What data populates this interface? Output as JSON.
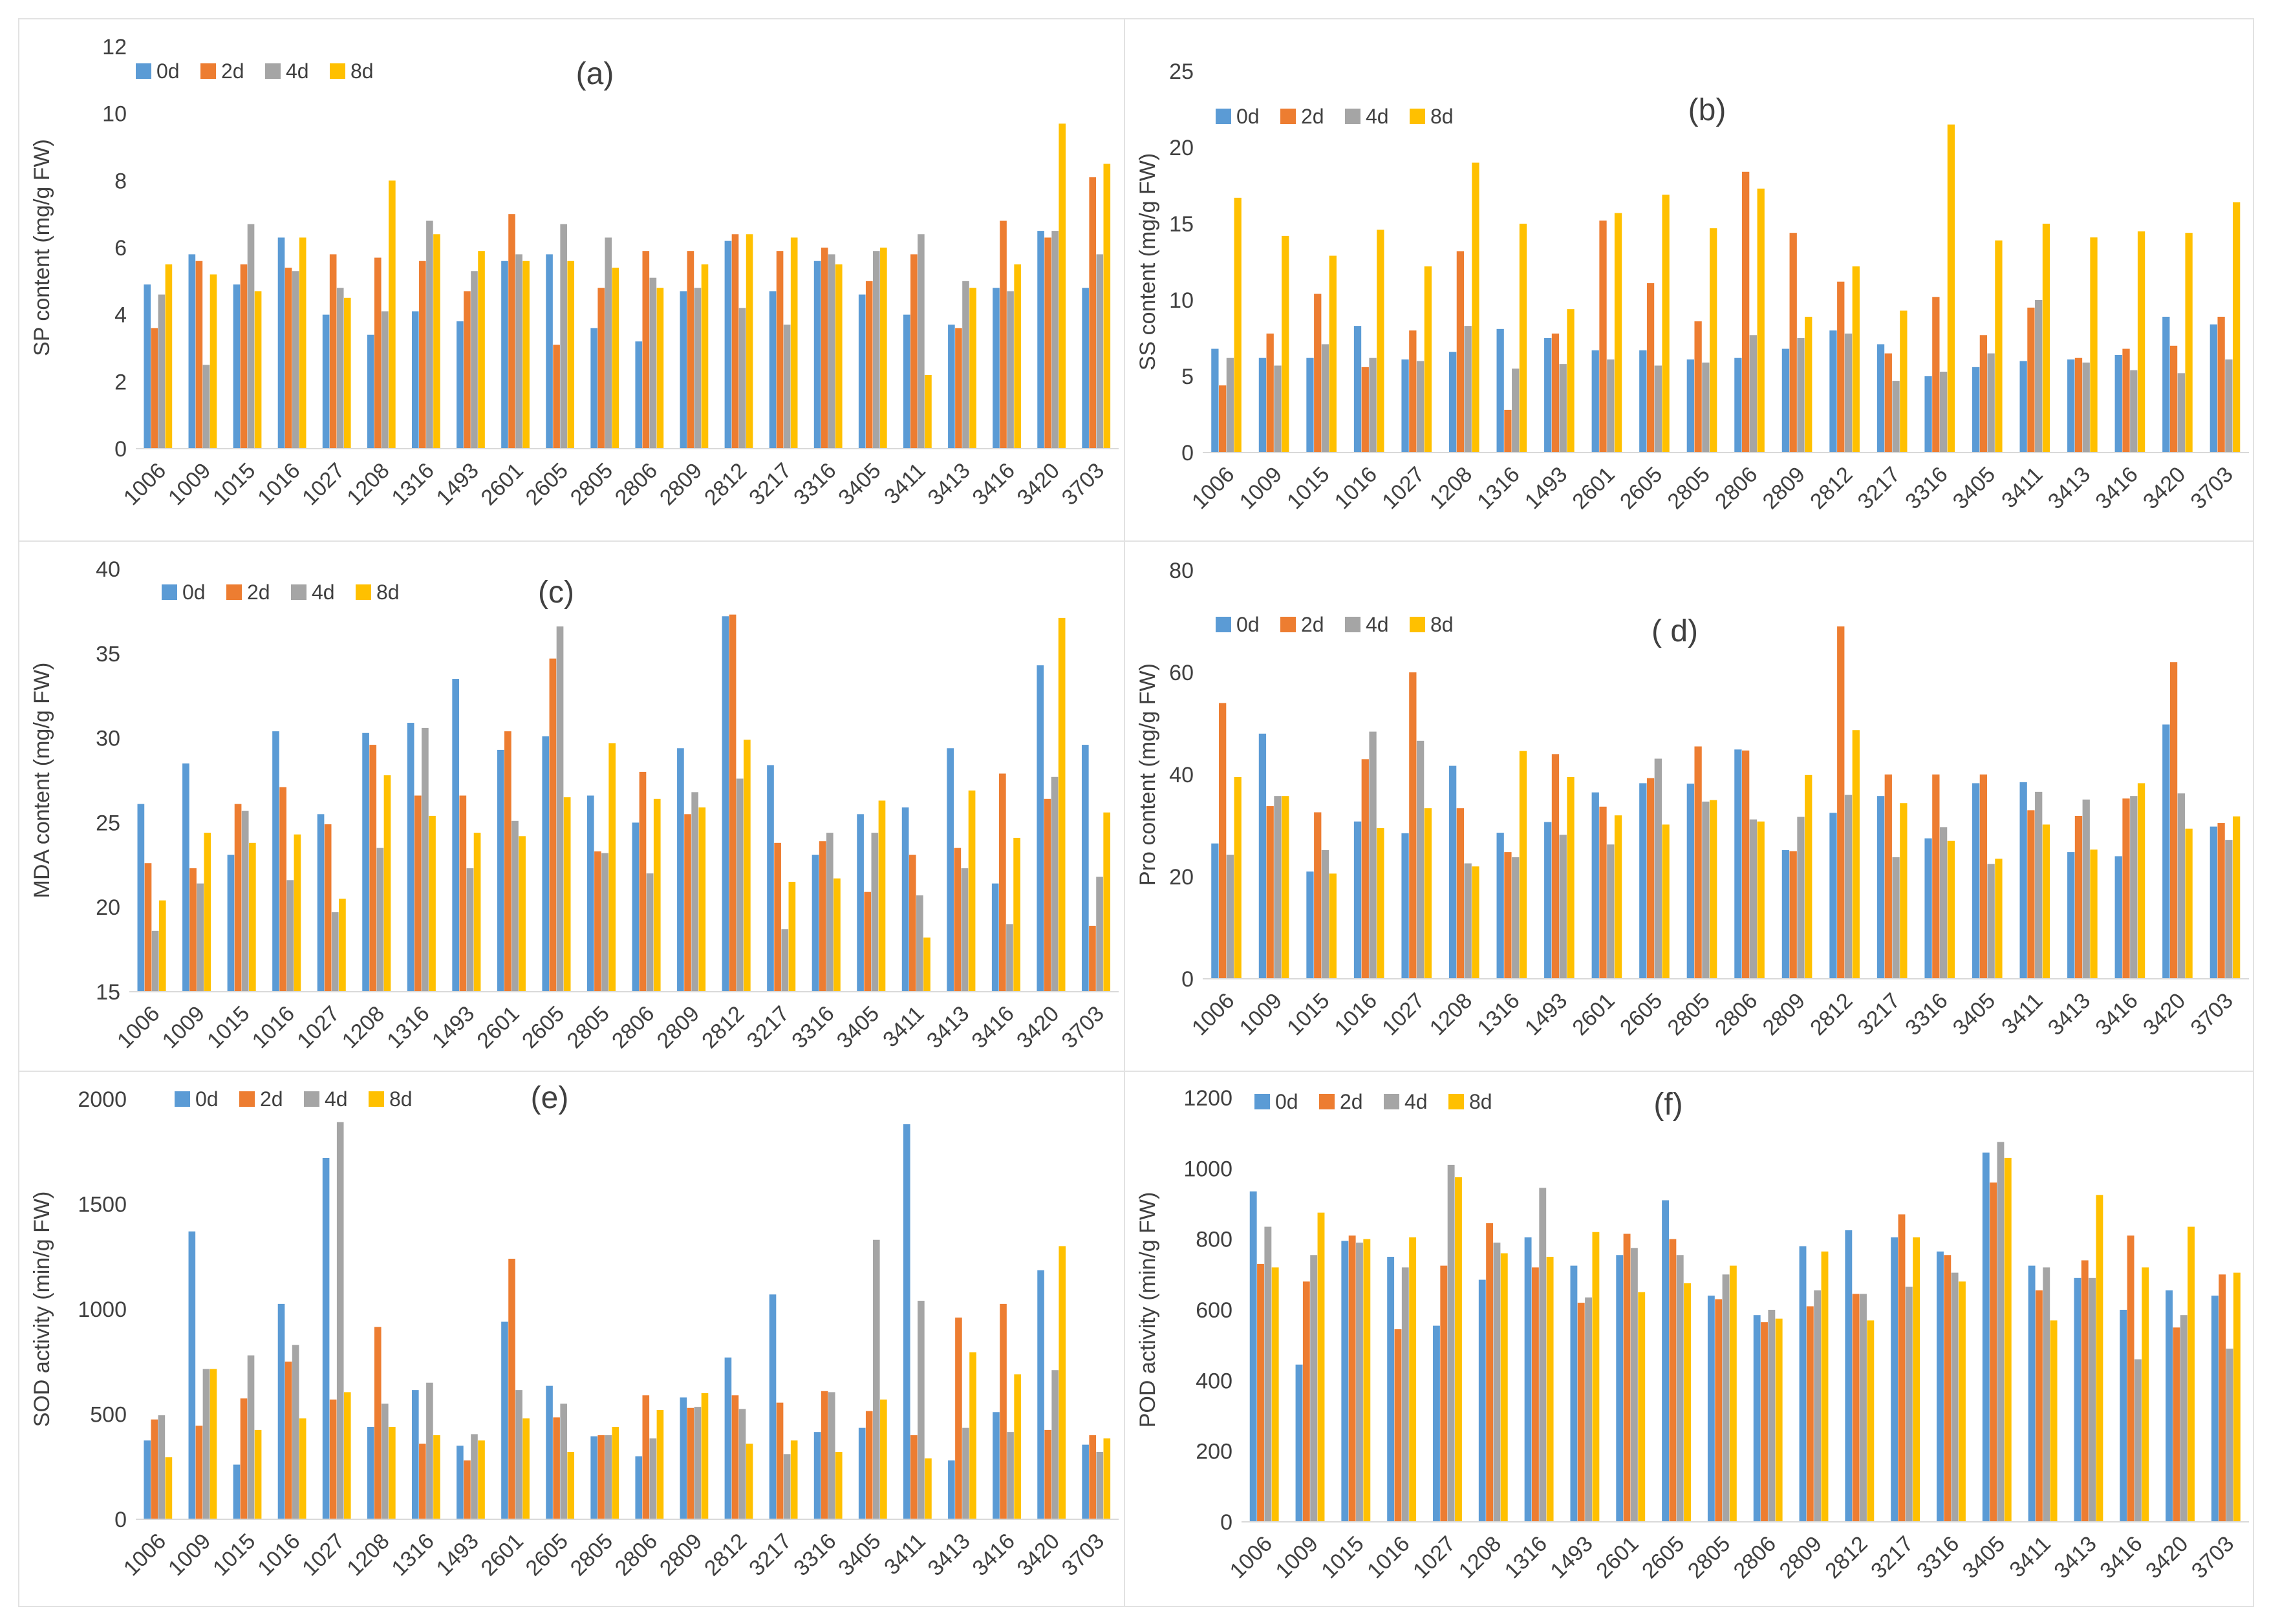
{
  "chart_data": [
    {
      "type": "bar",
      "panel_label": "(a)",
      "ylabel": "SP content (mg/g FW)",
      "ylim": [
        0,
        12
      ],
      "yticks": [
        "0",
        "2",
        "4",
        "6",
        "8",
        "10",
        "12"
      ],
      "legend_position": "top-left",
      "categories": [
        "1006",
        "1009",
        "1015",
        "1016",
        "1027",
        "1208",
        "1316",
        "1493",
        "2601",
        "2605",
        "2805",
        "2806",
        "2809",
        "2812",
        "3217",
        "3316",
        "3405",
        "3411",
        "3413",
        "3416",
        "3420",
        "3703"
      ],
      "series": [
        {
          "name": "0d",
          "color": "#5b9bd5",
          "values": [
            4.9,
            5.8,
            4.9,
            6.3,
            4.0,
            3.4,
            4.1,
            3.8,
            5.6,
            5.8,
            3.6,
            3.2,
            4.7,
            6.2,
            4.7,
            5.6,
            4.6,
            4.0,
            3.7,
            4.8,
            6.5,
            4.8
          ]
        },
        {
          "name": "2d",
          "color": "#ed7d31",
          "values": [
            3.6,
            5.6,
            5.5,
            5.4,
            5.8,
            5.7,
            5.6,
            4.7,
            7.0,
            3.1,
            4.8,
            5.9,
            5.9,
            6.4,
            5.9,
            6.0,
            5.0,
            5.8,
            3.6,
            6.8,
            6.3,
            8.1
          ]
        },
        {
          "name": "4d",
          "color": "#a5a5a5",
          "values": [
            4.6,
            2.5,
            6.7,
            5.3,
            4.8,
            4.1,
            6.8,
            5.3,
            5.8,
            6.7,
            6.3,
            5.1,
            4.8,
            4.2,
            3.7,
            5.8,
            5.9,
            6.4,
            5.0,
            4.7,
            6.5,
            5.8
          ]
        },
        {
          "name": "8d",
          "color": "#ffc000",
          "values": [
            5.5,
            5.2,
            4.7,
            6.3,
            4.5,
            8.0,
            6.4,
            5.9,
            5.6,
            5.6,
            5.4,
            4.8,
            5.5,
            6.4,
            6.3,
            5.5,
            6.0,
            2.2,
            4.8,
            5.5,
            9.7,
            8.5
          ]
        }
      ]
    },
    {
      "type": "bar",
      "panel_label": "(b)",
      "ylabel": "SS content (mg/g FW)",
      "ylim": [
        0,
        25
      ],
      "yticks": [
        "0",
        "5",
        "10",
        "15",
        "20",
        "25"
      ],
      "legend_position": "top-left",
      "categories": [
        "1006",
        "1009",
        "1015",
        "1016",
        "1027",
        "1208",
        "1316",
        "1493",
        "2601",
        "2605",
        "2805",
        "2806",
        "2809",
        "2812",
        "3217",
        "3316",
        "3405",
        "3411",
        "3413",
        "3416",
        "3420",
        "3703"
      ],
      "series": [
        {
          "name": "0d",
          "color": "#5b9bd5",
          "values": [
            6.8,
            6.2,
            6.2,
            8.3,
            6.1,
            6.6,
            8.1,
            7.5,
            6.7,
            6.7,
            6.1,
            6.2,
            6.8,
            8.0,
            7.1,
            5.0,
            5.6,
            6.0,
            6.1,
            6.4,
            8.9,
            8.4
          ]
        },
        {
          "name": "2d",
          "color": "#ed7d31",
          "values": [
            4.4,
            7.8,
            10.4,
            5.6,
            8.0,
            13.2,
            2.8,
            7.8,
            15.2,
            11.1,
            8.6,
            18.4,
            14.4,
            11.2,
            6.5,
            10.2,
            7.7,
            9.5,
            6.2,
            6.8,
            7.0,
            8.9
          ]
        },
        {
          "name": "4d",
          "color": "#a5a5a5",
          "values": [
            6.2,
            5.7,
            7.1,
            6.2,
            6.0,
            8.3,
            5.5,
            5.8,
            6.1,
            5.7,
            5.9,
            7.7,
            7.5,
            7.8,
            4.7,
            5.3,
            6.5,
            10.0,
            5.9,
            5.4,
            5.2,
            6.1
          ]
        },
        {
          "name": "8d",
          "color": "#ffc000",
          "values": [
            16.7,
            14.2,
            12.9,
            14.6,
            12.2,
            19.0,
            15.0,
            9.4,
            15.7,
            16.9,
            14.7,
            17.3,
            8.9,
            12.2,
            9.3,
            21.5,
            13.9,
            15.0,
            14.1,
            14.5,
            14.4,
            16.4
          ]
        }
      ]
    },
    {
      "type": "bar",
      "panel_label": "(c)",
      "ylabel": "MDA content (mg/g FW)",
      "ylim": [
        15,
        40
      ],
      "yticks": [
        "15",
        "20",
        "25",
        "30",
        "35",
        "40"
      ],
      "legend_position": "top-left",
      "categories": [
        "1006",
        "1009",
        "1015",
        "1016",
        "1027",
        "1208",
        "1316",
        "1493",
        "2601",
        "2605",
        "2805",
        "2806",
        "2809",
        "2812",
        "3217",
        "3316",
        "3405",
        "3411",
        "3413",
        "3416",
        "3420",
        "3703"
      ],
      "series": [
        {
          "name": "0d",
          "color": "#5b9bd5",
          "values": [
            26.1,
            28.5,
            23.1,
            30.4,
            25.5,
            30.3,
            30.9,
            33.5,
            29.3,
            30.1,
            26.6,
            25.0,
            29.4,
            37.2,
            28.4,
            23.1,
            25.5,
            25.9,
            29.4,
            21.4,
            34.3,
            29.6
          ]
        },
        {
          "name": "2d",
          "color": "#ed7d31",
          "values": [
            22.6,
            22.3,
            26.1,
            27.1,
            24.9,
            29.6,
            26.6,
            26.6,
            30.4,
            34.7,
            23.3,
            28.0,
            25.5,
            37.3,
            23.8,
            23.9,
            20.9,
            23.1,
            23.5,
            27.9,
            26.4,
            18.9
          ]
        },
        {
          "name": "4d",
          "color": "#a5a5a5",
          "values": [
            18.6,
            21.4,
            25.7,
            21.6,
            19.7,
            23.5,
            30.6,
            22.3,
            25.1,
            36.6,
            23.2,
            22.0,
            26.8,
            27.6,
            18.7,
            24.4,
            24.4,
            20.7,
            22.3,
            19.0,
            27.7,
            21.8
          ]
        },
        {
          "name": "8d",
          "color": "#ffc000",
          "values": [
            20.4,
            24.4,
            23.8,
            24.3,
            20.5,
            27.8,
            25.4,
            24.4,
            24.2,
            26.5,
            29.7,
            26.4,
            25.9,
            29.9,
            21.5,
            21.7,
            26.3,
            18.2,
            26.9,
            24.1,
            37.1,
            25.6
          ]
        }
      ]
    },
    {
      "type": "bar",
      "panel_label": "( d)",
      "ylabel": "Pro content  (mg/g FW)",
      "ylim": [
        0,
        80
      ],
      "yticks": [
        "0",
        "20",
        "40",
        "60",
        "80"
      ],
      "legend_position": "top-left",
      "categories": [
        "1006",
        "1009",
        "1015",
        "1016",
        "1027",
        "1208",
        "1316",
        "1493",
        "2601",
        "2605",
        "2805",
        "2806",
        "2809",
        "2812",
        "3217",
        "3316",
        "3405",
        "3411",
        "3413",
        "3416",
        "3420",
        "3703"
      ],
      "series": [
        {
          "name": "0d",
          "color": "#5b9bd5",
          "values": [
            26.5,
            48.0,
            21.0,
            30.8,
            28.5,
            41.7,
            28.6,
            30.7,
            36.5,
            38.3,
            38.2,
            44.9,
            25.2,
            32.5,
            35.8,
            27.5,
            38.3,
            38.5,
            24.8,
            24.0,
            49.8,
            29.8
          ]
        },
        {
          "name": "2d",
          "color": "#ed7d31",
          "values": [
            54.0,
            33.8,
            32.6,
            43.0,
            60.0,
            33.4,
            24.8,
            44.0,
            33.7,
            39.3,
            45.5,
            44.7,
            25.0,
            69.0,
            40.0,
            40.0,
            40.0,
            33.0,
            31.9,
            35.3,
            62.0,
            30.5
          ]
        },
        {
          "name": "4d",
          "color": "#a5a5a5",
          "values": [
            24.3,
            35.8,
            25.2,
            48.4,
            46.6,
            22.6,
            23.8,
            28.2,
            26.3,
            43.1,
            34.7,
            31.2,
            31.7,
            36.0,
            23.8,
            29.7,
            22.5,
            36.6,
            35.1,
            35.8,
            36.3,
            27.2
          ]
        },
        {
          "name": "8d",
          "color": "#ffc000",
          "values": [
            39.5,
            35.8,
            20.6,
            29.5,
            33.4,
            22.0,
            44.6,
            39.5,
            32.0,
            30.2,
            35.0,
            30.8,
            39.9,
            48.7,
            34.4,
            27.0,
            23.5,
            30.2,
            25.3,
            38.3,
            29.4,
            31.8
          ]
        }
      ]
    },
    {
      "type": "bar",
      "panel_label": "(e)",
      "ylabel": "SOD activity (min/g FW)",
      "ylim": [
        0,
        2000
      ],
      "yticks": [
        "0",
        "500",
        "1000",
        "1500",
        "2000"
      ],
      "legend_position": "top-left",
      "categories": [
        "1006",
        "1009",
        "1015",
        "1016",
        "1027",
        "1208",
        "1316",
        "1493",
        "2601",
        "2605",
        "2805",
        "2806",
        "2809",
        "2812",
        "3217",
        "3316",
        "3405",
        "3411",
        "3413",
        "3416",
        "3420",
        "3703"
      ],
      "series": [
        {
          "name": "0d",
          "color": "#5b9bd5",
          "values": [
            375,
            1370,
            260,
            1025,
            1720,
            440,
            615,
            350,
            940,
            635,
            395,
            300,
            580,
            770,
            1070,
            415,
            435,
            1880,
            280,
            510,
            1185,
            355
          ]
        },
        {
          "name": "2d",
          "color": "#ed7d31",
          "values": [
            475,
            445,
            575,
            750,
            570,
            915,
            360,
            280,
            1240,
            485,
            400,
            590,
            530,
            590,
            555,
            610,
            515,
            400,
            960,
            1025,
            425,
            400
          ]
        },
        {
          "name": "4d",
          "color": "#a5a5a5",
          "values": [
            495,
            715,
            780,
            830,
            1890,
            550,
            650,
            405,
            615,
            550,
            400,
            385,
            535,
            525,
            310,
            605,
            1330,
            1040,
            435,
            415,
            710,
            320
          ]
        },
        {
          "name": "8d",
          "color": "#ffc000",
          "values": [
            295,
            715,
            425,
            480,
            605,
            440,
            400,
            375,
            480,
            320,
            440,
            520,
            600,
            360,
            375,
            320,
            570,
            290,
            795,
            690,
            1300,
            385
          ]
        }
      ]
    },
    {
      "type": "bar",
      "panel_label": "(f)",
      "ylabel": "POD activity (min/g FW)",
      "ylim": [
        0,
        1200
      ],
      "yticks": [
        "0",
        "200",
        "400",
        "600",
        "800",
        "1000",
        "1200"
      ],
      "legend_position": "top-left",
      "categories": [
        "1006",
        "1009",
        "1015",
        "1016",
        "1027",
        "1208",
        "1316",
        "1493",
        "2601",
        "2605",
        "2805",
        "2806",
        "2809",
        "2812",
        "3217",
        "3316",
        "3405",
        "3411",
        "3413",
        "3416",
        "3420",
        "3703"
      ],
      "series": [
        {
          "name": "0d",
          "color": "#5b9bd5",
          "values": [
            935,
            445,
            795,
            750,
            555,
            685,
            805,
            725,
            755,
            910,
            640,
            585,
            780,
            825,
            805,
            765,
            1045,
            725,
            690,
            600,
            655,
            640
          ]
        },
        {
          "name": "2d",
          "color": "#ed7d31",
          "values": [
            730,
            680,
            810,
            545,
            725,
            845,
            720,
            620,
            815,
            800,
            630,
            565,
            610,
            645,
            870,
            755,
            960,
            655,
            740,
            810,
            550,
            700
          ]
        },
        {
          "name": "4d",
          "color": "#a5a5a5",
          "values": [
            835,
            755,
            790,
            720,
            1010,
            790,
            945,
            635,
            775,
            755,
            700,
            600,
            655,
            645,
            665,
            705,
            1075,
            720,
            690,
            460,
            585,
            490
          ]
        },
        {
          "name": "8d",
          "color": "#ffc000",
          "values": [
            720,
            875,
            800,
            805,
            975,
            760,
            750,
            820,
            650,
            675,
            725,
            575,
            765,
            570,
            805,
            680,
            1030,
            570,
            925,
            720,
            835,
            705
          ]
        }
      ]
    }
  ]
}
